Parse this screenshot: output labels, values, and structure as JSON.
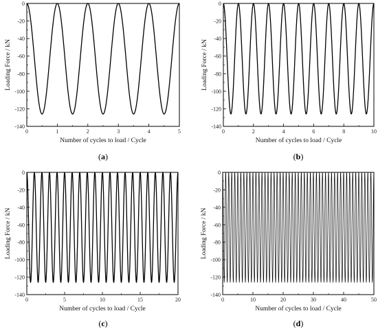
{
  "chart_data": [
    {
      "type": "line",
      "panel_label": "(a)",
      "panel_letter": "a",
      "xlabel": "Number of cycles to load / Cycle",
      "ylabel": "Loading Force / kN",
      "xlim": [
        0,
        5
      ],
      "ylim": [
        -140,
        0
      ],
      "xticks": [
        0,
        1,
        2,
        3,
        4,
        5
      ],
      "yticks": [
        0,
        -20,
        -40,
        -60,
        -80,
        -100,
        -120,
        -140
      ],
      "grid": false,
      "series": [
        {
          "function": "sinusoid",
          "period": 1,
          "max": 0,
          "min": -126,
          "x_start": 0,
          "x_end": 5,
          "color": "#000000"
        }
      ]
    },
    {
      "type": "line",
      "panel_label": "(b)",
      "panel_letter": "b",
      "xlabel": "Number of cycles to load / Cycle",
      "ylabel": "Loading Force / kN",
      "xlim": [
        0,
        10
      ],
      "ylim": [
        -140,
        0
      ],
      "xticks": [
        0,
        2,
        4,
        6,
        8,
        10
      ],
      "yticks": [
        0,
        -20,
        -40,
        -60,
        -80,
        -100,
        -120,
        -140
      ],
      "grid": false,
      "series": [
        {
          "function": "sinusoid",
          "period": 1,
          "max": 0,
          "min": -126,
          "x_start": 0,
          "x_end": 10,
          "color": "#000000"
        }
      ]
    },
    {
      "type": "line",
      "panel_label": "(c)",
      "panel_letter": "c",
      "xlabel": "Number of cycles to load / Cycle",
      "ylabel": "Loading Force / kN",
      "xlim": [
        0,
        20
      ],
      "ylim": [
        -140,
        0
      ],
      "xticks": [
        0,
        5,
        10,
        15,
        20
      ],
      "yticks": [
        0,
        -20,
        -40,
        -60,
        -80,
        -100,
        -120,
        -140
      ],
      "grid": false,
      "series": [
        {
          "function": "sinusoid",
          "period": 1,
          "max": 0,
          "min": -126,
          "x_start": 0,
          "x_end": 20,
          "color": "#000000"
        }
      ]
    },
    {
      "type": "line",
      "panel_label": "(d)",
      "panel_letter": "d",
      "xlabel": "Number of cycles to load / Cycle",
      "ylabel": "Loading Force / kN",
      "xlim": [
        0,
        50
      ],
      "ylim": [
        -140,
        0
      ],
      "xticks": [
        0,
        10,
        20,
        30,
        40,
        50
      ],
      "yticks": [
        0,
        -20,
        -40,
        -60,
        -80,
        -100,
        -120,
        -140
      ],
      "grid": false,
      "series": [
        {
          "function": "sinusoid",
          "period": 1,
          "max": 0,
          "min": -126,
          "x_start": 0,
          "x_end": 50,
          "color": "#000000"
        }
      ]
    }
  ]
}
